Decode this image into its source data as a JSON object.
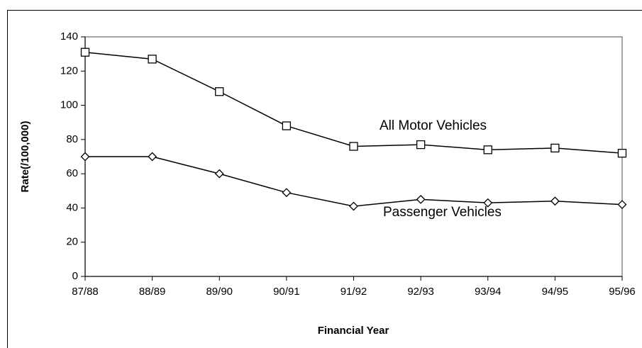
{
  "chart_data": {
    "type": "line",
    "x_label": "Financial Year",
    "y_label": "Rate(/100,000)",
    "categories": [
      "87/88",
      "88/89",
      "89/90",
      "90/91",
      "91/92",
      "92/93",
      "93/94",
      "94/95",
      "95/96"
    ],
    "series": [
      {
        "name": "All Motor Vehicles",
        "color": "#000000",
        "marker": "square",
        "values": [
          131,
          127,
          108,
          88,
          76,
          77,
          74,
          75,
          72
        ]
      },
      {
        "name": "Passenger Vehicles",
        "color": "#000000",
        "marker": "diamond",
        "values": [
          70,
          70,
          60,
          49,
          41,
          45,
          43,
          44,
          42
        ]
      }
    ],
    "ylim": [
      0,
      140
    ],
    "yticks": [
      0,
      20,
      40,
      60,
      80,
      100,
      120,
      140
    ],
    "grid": false
  }
}
